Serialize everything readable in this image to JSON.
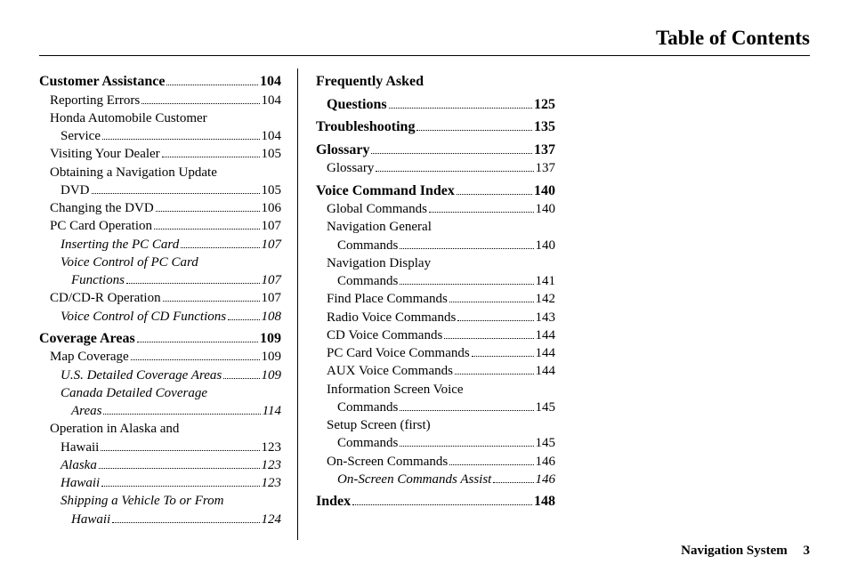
{
  "header_title": "Table of Contents",
  "footer": {
    "label": "Navigation System",
    "page": "3"
  },
  "left_col": [
    {
      "type": "section",
      "label": "Customer Assistance",
      "page": "104"
    },
    {
      "type": "level1",
      "label": "Reporting Errors",
      "page": "104"
    },
    {
      "type": "level1-wrap",
      "line1": "Honda Automobile Customer",
      "line2": "Service",
      "page": "104"
    },
    {
      "type": "level1",
      "label": "Visiting Your Dealer",
      "page": "105"
    },
    {
      "type": "level1-wrap",
      "line1": "Obtaining a Navigation Update",
      "line2": "DVD",
      "page": "105"
    },
    {
      "type": "level1",
      "label": "Changing the DVD",
      "page": "106"
    },
    {
      "type": "level1",
      "label": "PC Card Operation",
      "page": "107"
    },
    {
      "type": "level2",
      "italic": true,
      "label": "Inserting the PC Card",
      "page": "107"
    },
    {
      "type": "level2-wrap",
      "italic": true,
      "line1": "Voice Control of PC Card",
      "line2": "Functions",
      "page": "107"
    },
    {
      "type": "level1",
      "label": "CD/CD-R Operation",
      "page": "107"
    },
    {
      "type": "level2",
      "italic": true,
      "label": "Voice Control of CD Functions",
      "page": "108"
    },
    {
      "type": "section",
      "label": "Coverage Areas",
      "page": "109"
    },
    {
      "type": "level1",
      "label": "Map Coverage",
      "page": "109"
    },
    {
      "type": "level2",
      "italic": true,
      "label": "U.S. Detailed Coverage Areas",
      "page": "109"
    },
    {
      "type": "level2-wrap",
      "italic": true,
      "line1": "Canada Detailed Coverage",
      "line2": "Areas",
      "page": "114"
    },
    {
      "type": "level1-wrap",
      "line1": "Operation in Alaska and",
      "line2": "Hawaii",
      "page": "123"
    },
    {
      "type": "level2",
      "italic": true,
      "label": "Alaska",
      "page": "123"
    },
    {
      "type": "level2",
      "italic": true,
      "label": "Hawaii",
      "page": "123"
    },
    {
      "type": "level2-wrap",
      "italic": true,
      "line1": "Shipping a Vehicle To or From",
      "line2": "Hawaii",
      "page": "124"
    }
  ],
  "right_col": [
    {
      "type": "section-wrap",
      "line1": "Frequently Asked",
      "line2": "Questions",
      "page": "125"
    },
    {
      "type": "section",
      "label": "Troubleshooting",
      "page": "135"
    },
    {
      "type": "section",
      "label": "Glossary",
      "page": "137"
    },
    {
      "type": "level1",
      "label": "Glossary",
      "page": "137"
    },
    {
      "type": "section",
      "label": "Voice Command Index",
      "page": "140"
    },
    {
      "type": "level1",
      "label": "Global Commands",
      "page": "140"
    },
    {
      "type": "level1-wrap",
      "line1": "Navigation General",
      "line2": "Commands",
      "page": "140"
    },
    {
      "type": "level1-wrap",
      "line1": "Navigation Display",
      "line2": "Commands",
      "page": "141"
    },
    {
      "type": "level1",
      "label": "Find Place Commands",
      "page": "142"
    },
    {
      "type": "level1",
      "label": "Radio Voice Commands",
      "page": "143"
    },
    {
      "type": "level1",
      "label": "CD Voice Commands",
      "page": "144"
    },
    {
      "type": "level1",
      "label": "PC Card Voice Commands",
      "page": "144"
    },
    {
      "type": "level1",
      "label": "AUX Voice Commands",
      "page": "144"
    },
    {
      "type": "level1-wrap",
      "line1": "Information Screen Voice",
      "line2": "Commands",
      "page": "145"
    },
    {
      "type": "level1-wrap",
      "line1": "Setup Screen (first)",
      "line2": "Commands",
      "page": "145"
    },
    {
      "type": "level1",
      "label": "On-Screen Commands",
      "page": "146"
    },
    {
      "type": "level2",
      "italic": true,
      "label": "On-Screen Commands Assist",
      "page": "146"
    },
    {
      "type": "section",
      "label": "Index",
      "page": "148"
    }
  ]
}
